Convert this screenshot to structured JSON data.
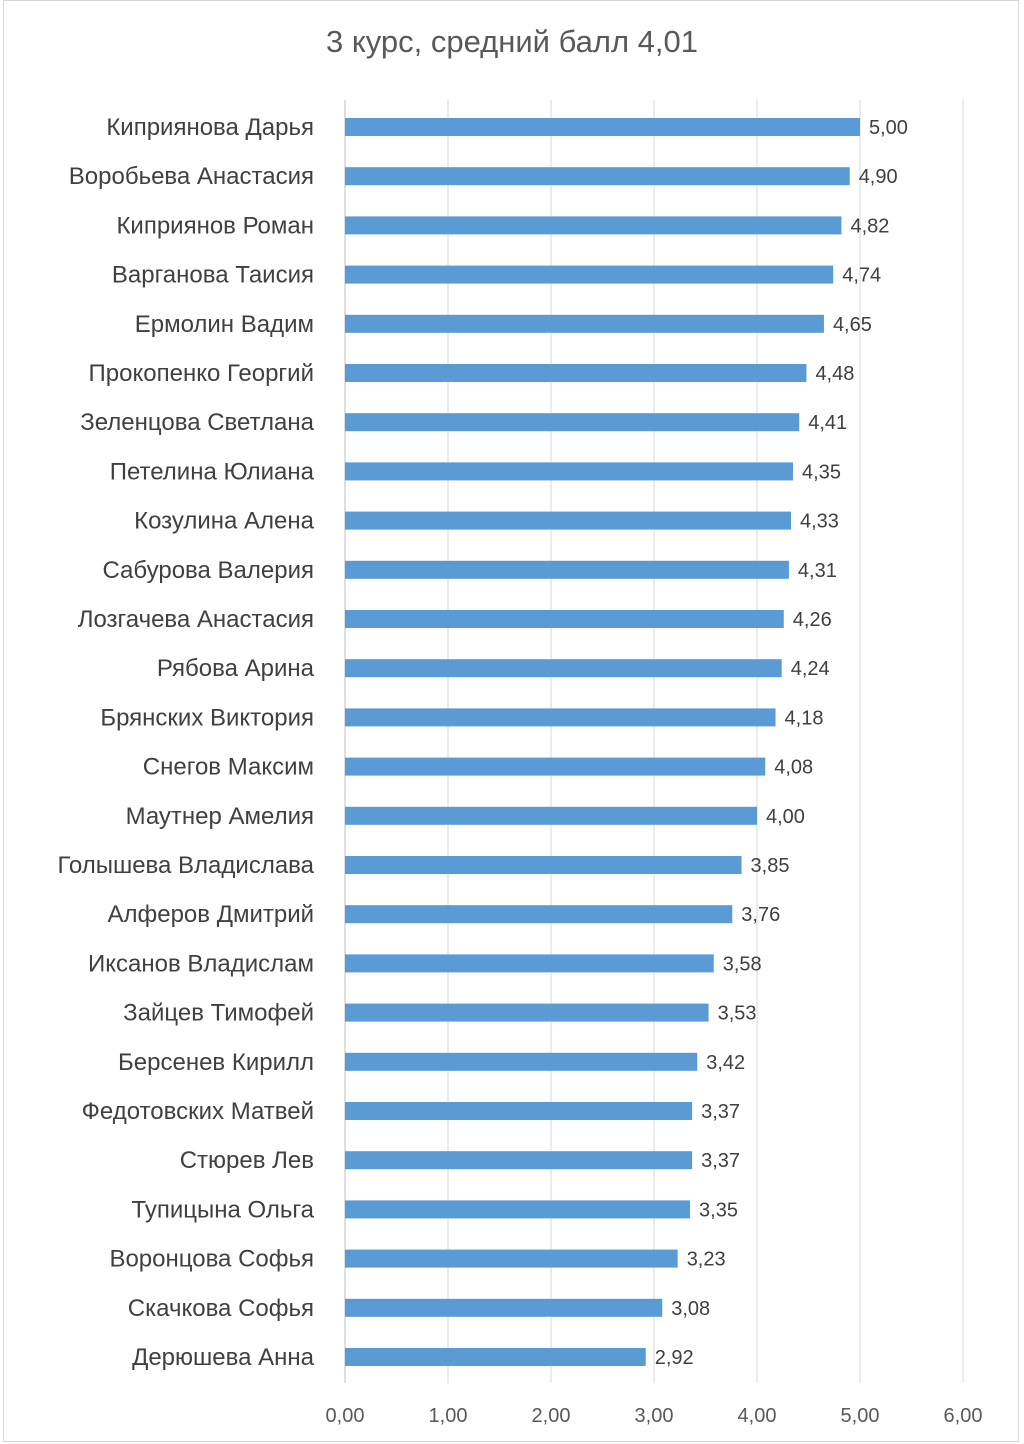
{
  "chart_data": {
    "type": "bar",
    "orientation": "horizontal",
    "title": "3 курс, средний балл 4,01",
    "xlabel": "",
    "ylabel": "",
    "xlim": [
      0,
      6
    ],
    "grid": true,
    "bar_color": "#5b9bd5",
    "x_ticks": [
      "0,00",
      "1,00",
      "2,00",
      "3,00",
      "4,00",
      "5,00",
      "6,00"
    ],
    "categories": [
      "Киприянова Дарья",
      "Воробьева Анастасия",
      "Киприянов Роман",
      "Варганова Таисия",
      "Ермолин Вадим",
      "Прокопенко Георгий",
      "Зеленцова Светлана",
      "Петелина Юлиана",
      "Козулина Алена",
      "Сабурова Валерия",
      "Лозгачева Анастасия",
      "Рябова Арина",
      "Брянских Виктория",
      "Снегов Максим",
      "Маутнер Амелия",
      "Голышева Владислава",
      "Алферов Дмитрий",
      "Иксанов Владислам",
      "Зайцев Тимофей",
      "Берсенев Кирилл",
      "Федотовских Матвей",
      "Стюрев Лев",
      "Тупицына Ольга",
      "Воронцова Софья",
      "Скачкова Софья",
      "Дерюшева Анна"
    ],
    "values": [
      5.0,
      4.9,
      4.82,
      4.74,
      4.65,
      4.48,
      4.41,
      4.35,
      4.33,
      4.31,
      4.26,
      4.24,
      4.18,
      4.08,
      4.0,
      3.85,
      3.76,
      3.58,
      3.53,
      3.42,
      3.37,
      3.37,
      3.35,
      3.23,
      3.08,
      2.92
    ],
    "value_labels": [
      "5,00",
      "4,90",
      "4,82",
      "4,74",
      "4,65",
      "4,48",
      "4,41",
      "4,35",
      "4,33",
      "4,31",
      "4,26",
      "4,24",
      "4,18",
      "4,08",
      "4,00",
      "3,85",
      "3,76",
      "3,58",
      "3,53",
      "3,42",
      "3,37",
      "3,37",
      "3,35",
      "3,23",
      "3,08",
      "2,92"
    ]
  }
}
